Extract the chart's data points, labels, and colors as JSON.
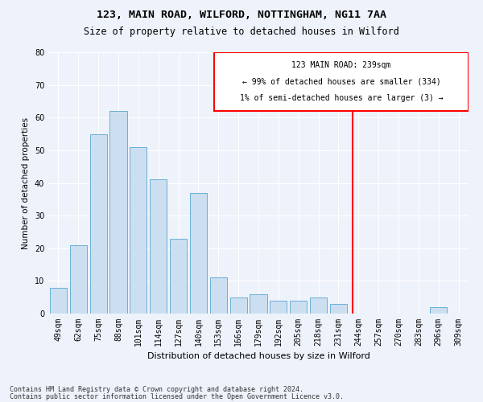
{
  "title1": "123, MAIN ROAD, WILFORD, NOTTINGHAM, NG11 7AA",
  "title2": "Size of property relative to detached houses in Wilford",
  "xlabel": "Distribution of detached houses by size in Wilford",
  "ylabel": "Number of detached properties",
  "categories": [
    "49sqm",
    "62sqm",
    "75sqm",
    "88sqm",
    "101sqm",
    "114sqm",
    "127sqm",
    "140sqm",
    "153sqm",
    "166sqm",
    "179sqm",
    "192sqm",
    "205sqm",
    "218sqm",
    "231sqm",
    "244sqm",
    "257sqm",
    "270sqm",
    "283sqm",
    "296sqm",
    "309sqm"
  ],
  "values": [
    8,
    21,
    55,
    62,
    51,
    41,
    23,
    37,
    11,
    5,
    6,
    4,
    4,
    5,
    3,
    0,
    0,
    0,
    0,
    2,
    0
  ],
  "bar_color": "#ccdff0",
  "bar_edge_color": "#6aafd6",
  "vline_x_index": 14.7,
  "ylim": [
    0,
    80
  ],
  "yticks": [
    0,
    10,
    20,
    30,
    40,
    50,
    60,
    70,
    80
  ],
  "property_label": "123 MAIN ROAD: 239sqm",
  "annotation_line1": "← 99% of detached houses are smaller (334)",
  "annotation_line2": "1% of semi-detached houses are larger (3) →",
  "footnote1": "Contains HM Land Registry data © Crown copyright and database right 2024.",
  "footnote2": "Contains public sector information licensed under the Open Government Licence v3.0.",
  "background_color": "#eef2fb",
  "grid_color": "#ffffff",
  "title1_fontsize": 9.5,
  "title2_fontsize": 8.5,
  "xlabel_fontsize": 8,
  "ylabel_fontsize": 7.5,
  "tick_fontsize": 7,
  "annot_fontsize": 7,
  "footnote_fontsize": 6
}
